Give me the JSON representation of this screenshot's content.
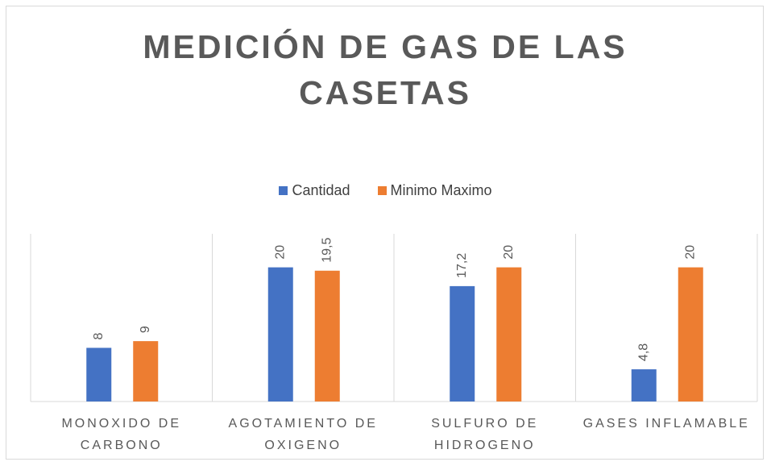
{
  "chart_data": {
    "type": "bar",
    "title": "MEDICIÓN DE GAS DE LAS CASETAS",
    "categories": [
      "MONOXIDO DE CARBONO",
      "AGOTAMIENTO DE OXIGENO",
      "SULFURO DE HIDROGENO",
      "GASES INFLAMABLE"
    ],
    "series": [
      {
        "name": "Cantidad",
        "color": "#4472c4",
        "values": [
          8,
          20,
          17.2,
          4.8
        ],
        "value_labels": [
          "8",
          "20",
          "17,2",
          "4,8"
        ]
      },
      {
        "name": "Minimo Maximo",
        "color": "#ed7d31",
        "values": [
          9,
          19.5,
          20,
          20
        ],
        "value_labels": [
          "9",
          "19,5",
          "20",
          "20"
        ]
      }
    ],
    "ylim": [
      0,
      25
    ],
    "grid": false,
    "legend": "top"
  }
}
